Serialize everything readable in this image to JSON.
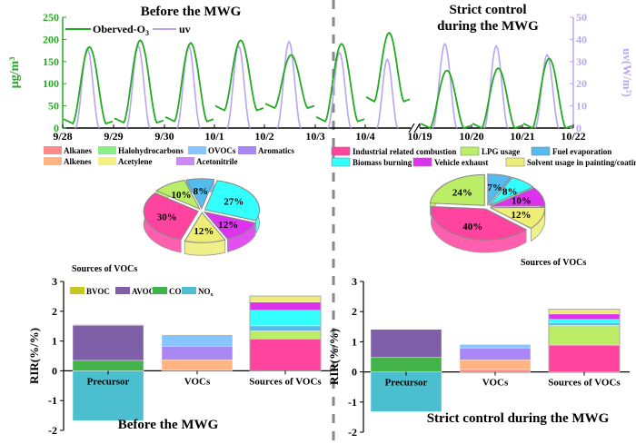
{
  "chart_data": [
    {
      "type": "line",
      "id": "timeseries",
      "title_left": "Before the MWG",
      "title_right_line1": "Strict control",
      "title_right_line2": "during the MWG",
      "ylabel": "µg/m³",
      "ylabel_right": "uv(W/m²)",
      "ylim": [
        0,
        250
      ],
      "ylim_right": [
        0,
        50
      ],
      "yticks": [
        "0",
        "50",
        "100",
        "150",
        "200",
        "250"
      ],
      "yticks_right": [
        "0",
        "10",
        "20",
        "30",
        "40",
        "50"
      ],
      "xticks": [
        "9/28",
        "9/29",
        "9/30",
        "10/1",
        "10/2",
        "10/3",
        "10/4",
        "10/19",
        "10/20",
        "10/21",
        "10/22"
      ],
      "legend": [
        {
          "name": "Oberved-O",
          "sub": "3",
          "color": "#22aa22"
        },
        {
          "name": "uv",
          "color": "#b9a5f0"
        }
      ],
      "series": [
        {
          "name": "Oberved-O3",
          "color": "#22aa22",
          "daily_peaks": [
            183,
            198,
            192,
            198,
            165,
            190,
            215,
            130,
            135,
            157
          ],
          "daily_min": [
            10,
            12,
            15,
            40,
            45,
            15,
            60,
            0,
            0,
            0
          ]
        },
        {
          "name": "uv",
          "color": "#b9a5f0",
          "daily_peaks_wm2": [
            36,
            37,
            37,
            37,
            39,
            34,
            31,
            38,
            37,
            33
          ]
        }
      ],
      "break_between": [
        "10/4",
        "10/19"
      ]
    },
    {
      "type": "pie",
      "id": "pie-before",
      "label": "Sources of VOCs",
      "slices": [
        {
          "name": "Biomass burning",
          "value": 27,
          "label": "27%",
          "color": "#33ffff"
        },
        {
          "name": "Vehicle exhaust",
          "value": 12,
          "label": "12%",
          "color": "#dd33ee"
        },
        {
          "name": "Solvent usage in painting/coating",
          "value": 12,
          "label": "12%",
          "color": "#eeee77"
        },
        {
          "name": "Industrial related combustion",
          "value": 30,
          "label": "30%",
          "color": "#ff44a0"
        },
        {
          "name": "LPG usage",
          "value": 10,
          "label": "10%",
          "color": "#bbee66"
        },
        {
          "name": "Fuel evaporation",
          "value": 8,
          "label": "8%",
          "color": "#55bbee"
        }
      ]
    },
    {
      "type": "pie",
      "id": "pie-during",
      "label": "Sources of VOCs",
      "slices": [
        {
          "name": "Fuel evaporation",
          "value": 7,
          "label": "7%",
          "color": "#55bbee"
        },
        {
          "name": "Biomass burning",
          "value": 8,
          "label": "8%",
          "color": "#33ffff"
        },
        {
          "name": "Vehicle exhaust",
          "value": 10,
          "label": "10%",
          "color": "#dd33ee"
        },
        {
          "name": "Solvent usage in painting/coating",
          "value": 12,
          "label": "12%",
          "color": "#eeee77"
        },
        {
          "name": "Industrial related combustion",
          "value": 40,
          "label": "40%",
          "color": "#ff44a0"
        },
        {
          "name": "LPG usage",
          "value": 24,
          "label": "24%",
          "color": "#bbee66"
        }
      ]
    },
    {
      "type": "bar",
      "id": "bar-before",
      "title": "Before the MWG",
      "ylabel": "RIR(%/%)",
      "ylim": [
        -2,
        3
      ],
      "yticks": [
        "-2",
        "-1",
        "0",
        "1",
        "2",
        "3"
      ],
      "categories": [
        "Precursor",
        "VOCs",
        "Sources of VOCs"
      ],
      "stacks": [
        [
          {
            "name": "NOx",
            "value": -1.67,
            "color": "#4bbfcf"
          },
          {
            "name": "CO",
            "value": 0.35,
            "color": "#44b34a"
          },
          {
            "name": "AVOC",
            "value": 1.18,
            "color": "#7f5fa8"
          },
          {
            "name": "BVOC",
            "value": 0.03,
            "color": "#d8d840"
          }
        ],
        [
          {
            "name": "Alkanes",
            "value": 0.03,
            "color": "#ff8a8a"
          },
          {
            "name": "Alkenes",
            "value": 0.34,
            "color": "#ffb380"
          },
          {
            "name": "Halohydrocarbons",
            "value": 0.0,
            "color": "#88ee88"
          },
          {
            "name": "Aromatics",
            "value": 0.46,
            "color": "#a988f5"
          },
          {
            "name": "Acetonitrile",
            "value": 0.0,
            "color": "#cc88f5"
          },
          {
            "name": "OVOCs",
            "value": 0.38,
            "color": "#88c4ff"
          },
          {
            "name": "Acetylene",
            "value": 0.02,
            "color": "#f5f080"
          }
        ],
        [
          {
            "name": "Industrial related combustion",
            "value": 1.07,
            "color": "#ff44a0"
          },
          {
            "name": "LPG usage",
            "value": 0.27,
            "color": "#bbee66"
          },
          {
            "name": "Fuel evaporation",
            "value": 0.17,
            "color": "#55bbee"
          },
          {
            "name": "Biomass burning",
            "value": 0.52,
            "color": "#33ffff"
          },
          {
            "name": "Vehicle exhaust",
            "value": 0.28,
            "color": "#dd33ee"
          },
          {
            "name": "Solvent usage in painting/coating",
            "value": 0.2,
            "color": "#eeee77"
          }
        ]
      ],
      "legend": [
        {
          "name": "BVOC",
          "color": "#c8c820"
        },
        {
          "name": "AVOC",
          "color": "#7f5fa8"
        },
        {
          "name": "CO",
          "color": "#44b34a"
        },
        {
          "name": "NO",
          "sub": "x",
          "color": "#4bbfcf"
        }
      ]
    },
    {
      "type": "bar",
      "id": "bar-during",
      "title": "Strict control during the MWG",
      "ylabel": "RIR(%/%)",
      "ylim": [
        -2,
        3
      ],
      "yticks": [
        "-2",
        "-1",
        "0",
        "1",
        "2",
        "3"
      ],
      "categories": [
        "Precursor",
        "VOCs",
        "Sources of VOCs"
      ],
      "stacks": [
        [
          {
            "name": "NOx",
            "value": -1.32,
            "color": "#4bbfcf"
          },
          {
            "name": "CO",
            "value": 0.48,
            "color": "#44b34a"
          },
          {
            "name": "AVOC",
            "value": 0.93,
            "color": "#7f5fa8"
          },
          {
            "name": "BVOC",
            "value": 0.0,
            "color": "#d8d840"
          }
        ],
        [
          {
            "name": "Alkanes",
            "value": 0.08,
            "color": "#ff8a8a"
          },
          {
            "name": "Alkenes",
            "value": 0.32,
            "color": "#ffb380"
          },
          {
            "name": "Halohydrocarbons",
            "value": 0.0,
            "color": "#88ee88"
          },
          {
            "name": "Aromatics",
            "value": 0.4,
            "color": "#a988f5"
          },
          {
            "name": "Acetonitrile",
            "value": 0.0,
            "color": "#cc88f5"
          },
          {
            "name": "OVOCs",
            "value": 0.11,
            "color": "#88c4ff"
          },
          {
            "name": "Acetylene",
            "value": 0.02,
            "color": "#f5f080"
          }
        ],
        [
          {
            "name": "Industrial related combustion",
            "value": 0.89,
            "color": "#ff44a0"
          },
          {
            "name": "LPG usage",
            "value": 0.65,
            "color": "#bbee66"
          },
          {
            "name": "Fuel evaporation",
            "value": 0.08,
            "color": "#55bbee"
          },
          {
            "name": "Biomass burning",
            "value": 0.12,
            "color": "#33ffff"
          },
          {
            "name": "Vehicle exhaust",
            "value": 0.18,
            "color": "#dd33ee"
          },
          {
            "name": "Solvent usage in painting/coating",
            "value": 0.16,
            "color": "#eeee77"
          }
        ]
      ]
    }
  ],
  "voc_legend": [
    {
      "name": "Alkanes",
      "color": "#ff8a8a"
    },
    {
      "name": "Halohydrocarbons",
      "color": "#88ee88"
    },
    {
      "name": "OVOCs",
      "color": "#88c4ff"
    },
    {
      "name": "Aromatics",
      "color": "#a988f5"
    },
    {
      "name": "Alkenes",
      "color": "#ffb380"
    },
    {
      "name": "Acetylene",
      "color": "#f5f080"
    },
    {
      "name": "Acetonitrile",
      "color": "#cc88f5"
    }
  ],
  "source_legend": [
    {
      "name": "Industrial related combustion",
      "color": "#ff44a0"
    },
    {
      "name": "LPG usage",
      "color": "#bbee66"
    },
    {
      "name": "Fuel evaporation",
      "color": "#55bbee"
    },
    {
      "name": "Biomass burning",
      "color": "#33ffff"
    },
    {
      "name": "Vehicle exhaust",
      "color": "#dd33ee"
    },
    {
      "name": "Solvent usage in painting/coating",
      "color": "#eeee77"
    }
  ]
}
